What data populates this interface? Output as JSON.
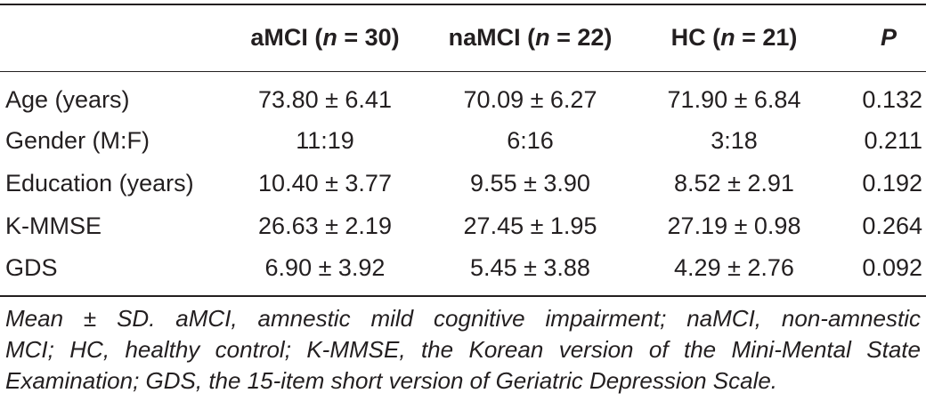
{
  "table": {
    "headers": {
      "col0": "",
      "col1_prefix": "aMCI (",
      "col1_n": "n",
      "col1_suffix": " = 30)",
      "col2_prefix": "naMCI (",
      "col2_n": "n",
      "col2_suffix": " = 22)",
      "col3_prefix": "HC (",
      "col3_n": "n",
      "col3_suffix": " = 21)",
      "col4": "P"
    },
    "rows": [
      {
        "label": "Age (years)",
        "amci": "73.80 ± 6.41",
        "namci": "70.09 ± 6.27",
        "hc": "71.90 ± 6.84",
        "p": "0.132"
      },
      {
        "label": "Gender (M:F)",
        "amci": "11:19",
        "namci": "6:16",
        "hc": "3:18",
        "p": "0.211"
      },
      {
        "label": "Education (years)",
        "amci": "10.40 ± 3.77",
        "namci": "9.55 ± 3.90",
        "hc": "8.52 ± 2.91",
        "p": "0.192"
      },
      {
        "label": "K-MMSE",
        "amci": "26.63 ± 2.19",
        "namci": "27.45 ± 1.95",
        "hc": "27.19 ± 0.98",
        "p": "0.264"
      },
      {
        "label": "GDS",
        "amci": "6.90 ± 3.92",
        "namci": "5.45 ± 3.88",
        "hc": "4.29 ± 2.76",
        "p": "0.092"
      }
    ]
  },
  "footnote": {
    "line1": "Mean ± SD. aMCI, amnestic mild cognitive impairment; naMCI, non-amnestic",
    "line2": "MCI; HC, healthy control; K-MMSE, the Korean version of the Mini-Mental State",
    "line3": "Examination; GDS, the 15-item short version of Geriatric Depression Scale."
  }
}
